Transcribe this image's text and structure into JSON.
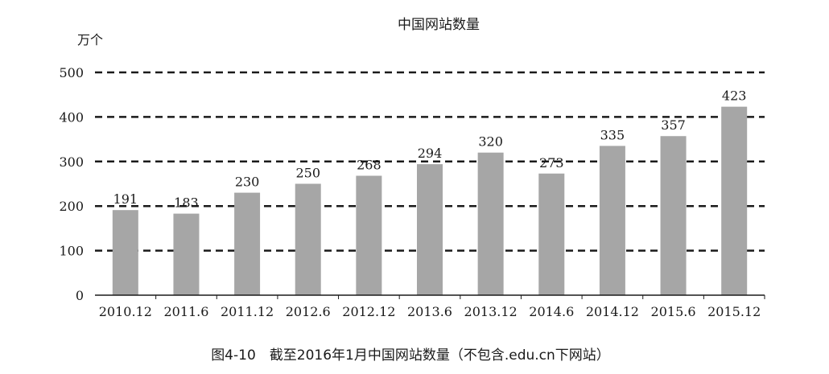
{
  "chart_data": {
    "type": "bar",
    "title": "中国网站数量",
    "ylabel": "万个",
    "xlabel": "",
    "categories": [
      "2010.12",
      "2011.6",
      "2011.12",
      "2012.6",
      "2012.12",
      "2013.6",
      "2013.12",
      "2014.6",
      "2014.12",
      "2015.6",
      "2015.12"
    ],
    "values": [
      191,
      183,
      230,
      250,
      268,
      294,
      320,
      273,
      335,
      357,
      423
    ],
    "ylim": [
      0,
      500
    ],
    "yticks": [
      0,
      100,
      200,
      300,
      400,
      500
    ],
    "grid": "dashed horizontal",
    "legend": "none",
    "bar_color": "#a6a6a6",
    "grid_color": "#1a1a1a",
    "caption": "图4-10　截至2016年1月中国网站数量（不包含.edu.cn下网站）"
  }
}
